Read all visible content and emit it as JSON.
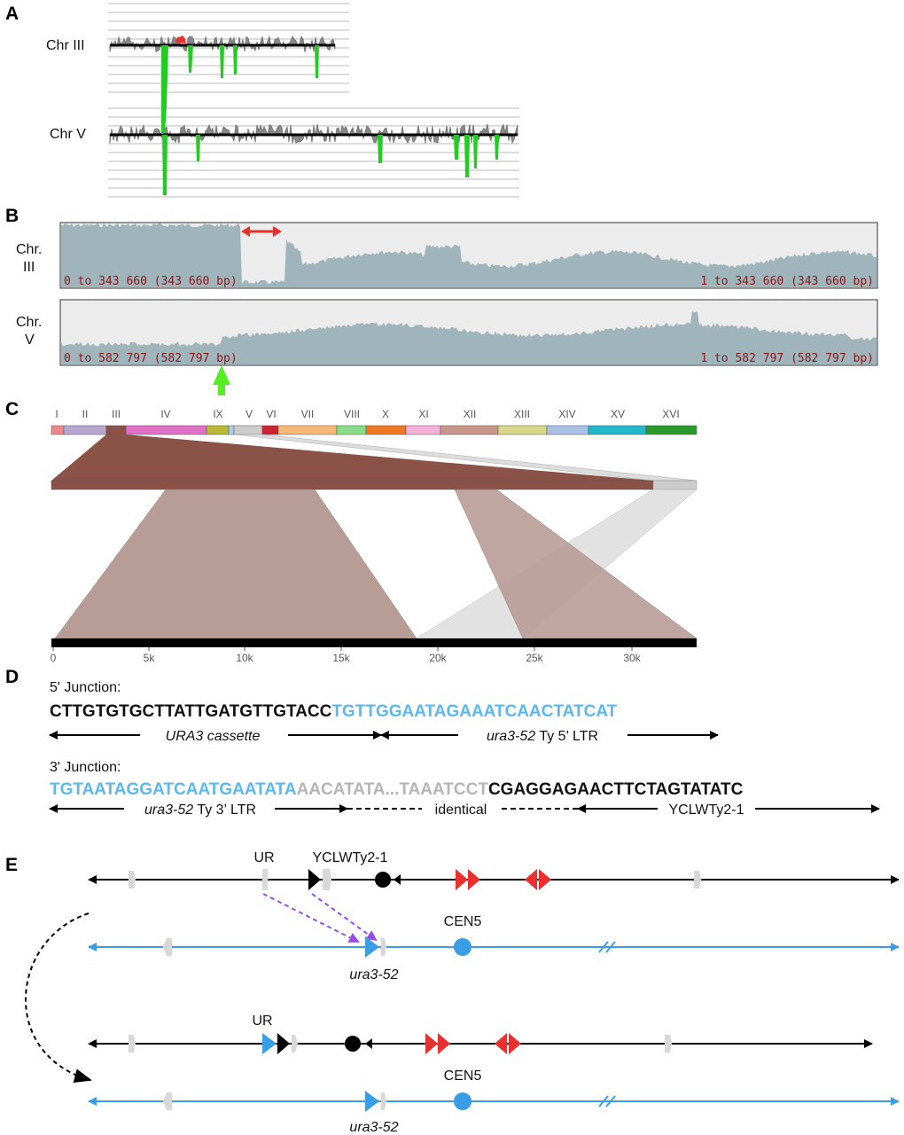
{
  "panels": {
    "a": {
      "letter": "A",
      "chr3": "Chr III",
      "chr5": "Chr V"
    },
    "b": {
      "letter": "B",
      "chr3_line1": "Chr.",
      "chr3_line2": "III",
      "chr5_line1": "Chr.",
      "chr5_line2": "V",
      "chr3_range_left": "0 to 343 660 (343 660 bp)",
      "chr3_range_right": "1 to 343 660 (343 660 bp)",
      "chr5_range_left": "0 to 582 797 (582 797 bp)",
      "chr5_range_right": "1 to 582 797 (582 797 bp)"
    },
    "c": {
      "letter": "C",
      "chromosomes": [
        "I",
        "II",
        "III",
        "IV",
        "IX",
        "V",
        "VI",
        "VII",
        "VIII",
        "X",
        "XI",
        "XII",
        "XIII",
        "XIV",
        "XV",
        "XVI"
      ],
      "ticks": [
        "0",
        "5k",
        "10k",
        "15k",
        "20k",
        "25k",
        "30k"
      ]
    },
    "d": {
      "letter": "D",
      "junction5_title": "5' Junction:",
      "junction5_black": "CTTGTGTGCTTATTGATGTTGTACC",
      "junction5_blue": "TGTTGGAATAGAAATCAACTATCAT",
      "ura3_cassette": "URA3 cassette",
      "ura3_52_a": "ura3-52",
      "ty5": " Ty 5’ LTR",
      "junction3_title": "3' Junction:",
      "junction3_blue": "TGTAATAGGATCAATGAATATA",
      "junction3_grey": "AACATATA...TAAATCCT",
      "junction3_black": "CGAGGAGAACTTCTAGTATATC",
      "ura3_52_b": "ura3-52",
      "ty3": " Ty 3’ LTR",
      "identical": "identical",
      "yclwty": "YCLWTy2-1"
    },
    "e": {
      "letter": "E",
      "ur_top": "UR",
      "yclwty_top": "YCLWTy2-1",
      "cen5_top": "CEN5",
      "ura3_top": "ura3-52",
      "ur_bottom": "UR",
      "cen5_bottom": "CEN5",
      "ura3_bottom": "ura3-52"
    }
  },
  "colors": {
    "green": "#22cc22",
    "red": "#e8302f",
    "blue": "#3a9ee6",
    "seq_blue": "#5bb8ee",
    "brown": "#8b5347",
    "purple": "#9a4de6"
  }
}
